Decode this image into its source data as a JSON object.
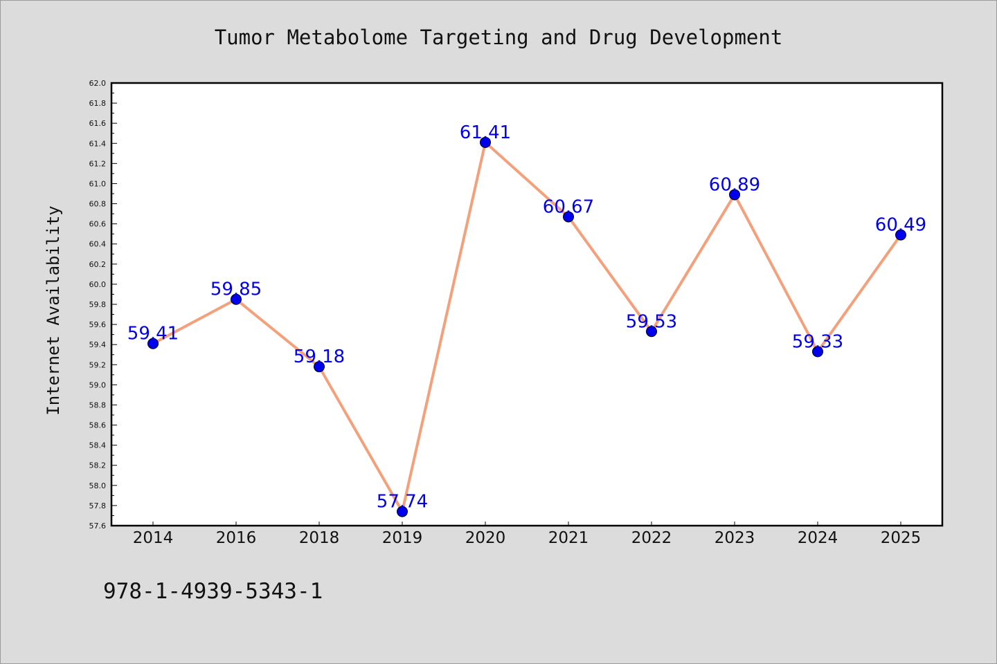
{
  "footer_text": "978-1-4939-5343-1",
  "chart_data": {
    "type": "line",
    "title": "Tumor Metabolome Targeting and Drug Development",
    "xlabel": "",
    "ylabel": "Internet Availability",
    "categories": [
      "2014",
      "2016",
      "2018",
      "2019",
      "2020",
      "2021",
      "2022",
      "2023",
      "2024",
      "2025"
    ],
    "values": [
      59.41,
      59.85,
      59.18,
      57.74,
      61.41,
      60.67,
      59.53,
      60.89,
      59.33,
      60.49
    ],
    "data_labels": [
      "59.41",
      "59.85",
      "59.18",
      "57.74",
      "61.41",
      "60.67",
      "59.53",
      "60.89",
      "59.33",
      "60.49"
    ],
    "ylim": [
      57.6,
      62.0
    ],
    "yticks": [
      "57.6",
      "57.8",
      "58.0",
      "58.2",
      "58.4",
      "58.6",
      "58.8",
      "59.0",
      "59.2",
      "59.4",
      "59.6",
      "59.8",
      "60.0",
      "60.2",
      "60.4",
      "60.6",
      "60.8",
      "61.0",
      "61.2",
      "61.4",
      "61.6",
      "61.8",
      "62.0"
    ],
    "grid": false,
    "colors": {
      "line": "#f4a07a",
      "marker": "#0000ee",
      "label": "#0000ee"
    }
  }
}
